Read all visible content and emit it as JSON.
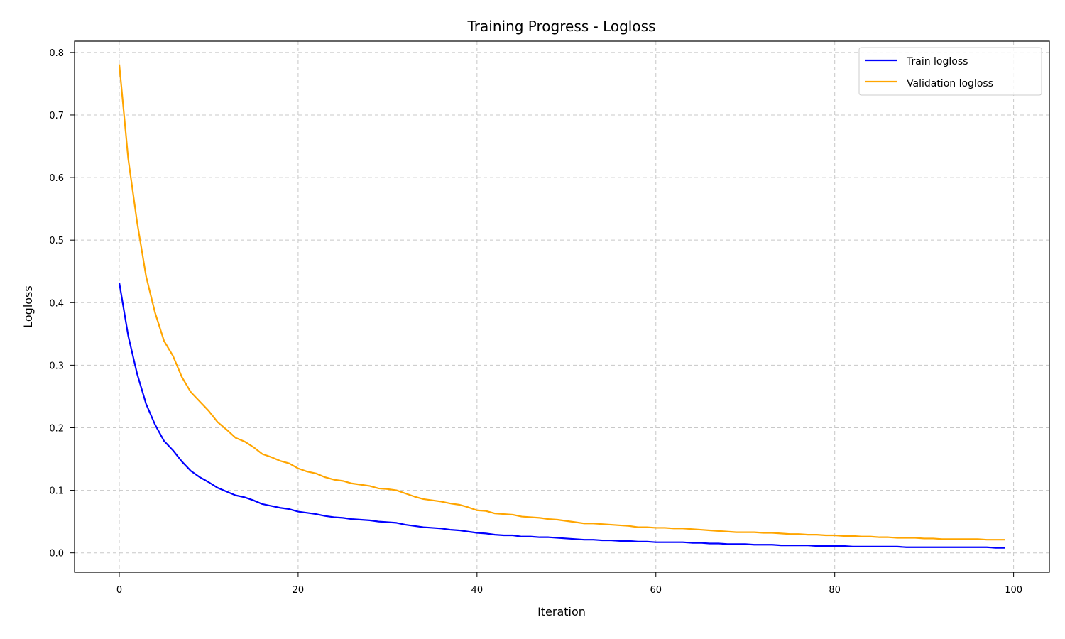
{
  "chart_data": {
    "type": "line",
    "title": "Training Progress - Logloss",
    "xlabel": "Iteration",
    "ylabel": "Logloss",
    "xlim": [
      -5,
      104
    ],
    "ylim": [
      -0.031,
      0.818
    ],
    "xticks": [
      0,
      20,
      40,
      60,
      80,
      100
    ],
    "yticks": [
      0.0,
      0.1,
      0.2,
      0.3,
      0.4,
      0.5,
      0.6,
      0.7,
      0.8
    ],
    "grid": true,
    "legend_position": "top-right",
    "series": [
      {
        "name": "Train logloss",
        "color": "#0000ff",
        "values": [
          0.432,
          0.347,
          0.286,
          0.238,
          0.205,
          0.179,
          0.164,
          0.146,
          0.131,
          0.121,
          0.113,
          0.104,
          0.098,
          0.092,
          0.089,
          0.084,
          0.078,
          0.075,
          0.072,
          0.07,
          0.066,
          0.064,
          0.062,
          0.059,
          0.057,
          0.056,
          0.054,
          0.053,
          0.052,
          0.05,
          0.049,
          0.048,
          0.045,
          0.043,
          0.041,
          0.04,
          0.039,
          0.037,
          0.036,
          0.034,
          0.032,
          0.031,
          0.029,
          0.028,
          0.028,
          0.026,
          0.026,
          0.025,
          0.025,
          0.024,
          0.023,
          0.022,
          0.021,
          0.021,
          0.02,
          0.02,
          0.019,
          0.019,
          0.018,
          0.018,
          0.017,
          0.017,
          0.017,
          0.017,
          0.016,
          0.016,
          0.015,
          0.015,
          0.014,
          0.014,
          0.014,
          0.013,
          0.013,
          0.013,
          0.012,
          0.012,
          0.012,
          0.012,
          0.011,
          0.011,
          0.011,
          0.011,
          0.01,
          0.01,
          0.01,
          0.01,
          0.01,
          0.01,
          0.009,
          0.009,
          0.009,
          0.009,
          0.009,
          0.009,
          0.009,
          0.009,
          0.009,
          0.009,
          0.008,
          0.008
        ]
      },
      {
        "name": "Validation logloss",
        "color": "#ffa500",
        "values": [
          0.781,
          0.63,
          0.528,
          0.442,
          0.384,
          0.339,
          0.315,
          0.281,
          0.257,
          0.242,
          0.227,
          0.209,
          0.197,
          0.184,
          0.178,
          0.169,
          0.158,
          0.153,
          0.147,
          0.143,
          0.135,
          0.13,
          0.127,
          0.121,
          0.117,
          0.115,
          0.111,
          0.109,
          0.107,
          0.103,
          0.102,
          0.1,
          0.095,
          0.09,
          0.086,
          0.084,
          0.082,
          0.079,
          0.077,
          0.073,
          0.068,
          0.067,
          0.063,
          0.062,
          0.061,
          0.058,
          0.057,
          0.056,
          0.054,
          0.053,
          0.051,
          0.049,
          0.047,
          0.047,
          0.046,
          0.045,
          0.044,
          0.043,
          0.041,
          0.041,
          0.04,
          0.04,
          0.039,
          0.039,
          0.038,
          0.037,
          0.036,
          0.035,
          0.034,
          0.033,
          0.033,
          0.033,
          0.032,
          0.032,
          0.031,
          0.03,
          0.03,
          0.029,
          0.029,
          0.028,
          0.028,
          0.027,
          0.027,
          0.026,
          0.026,
          0.025,
          0.025,
          0.024,
          0.024,
          0.024,
          0.023,
          0.023,
          0.022,
          0.022,
          0.022,
          0.022,
          0.022,
          0.021,
          0.021,
          0.021
        ]
      }
    ]
  }
}
